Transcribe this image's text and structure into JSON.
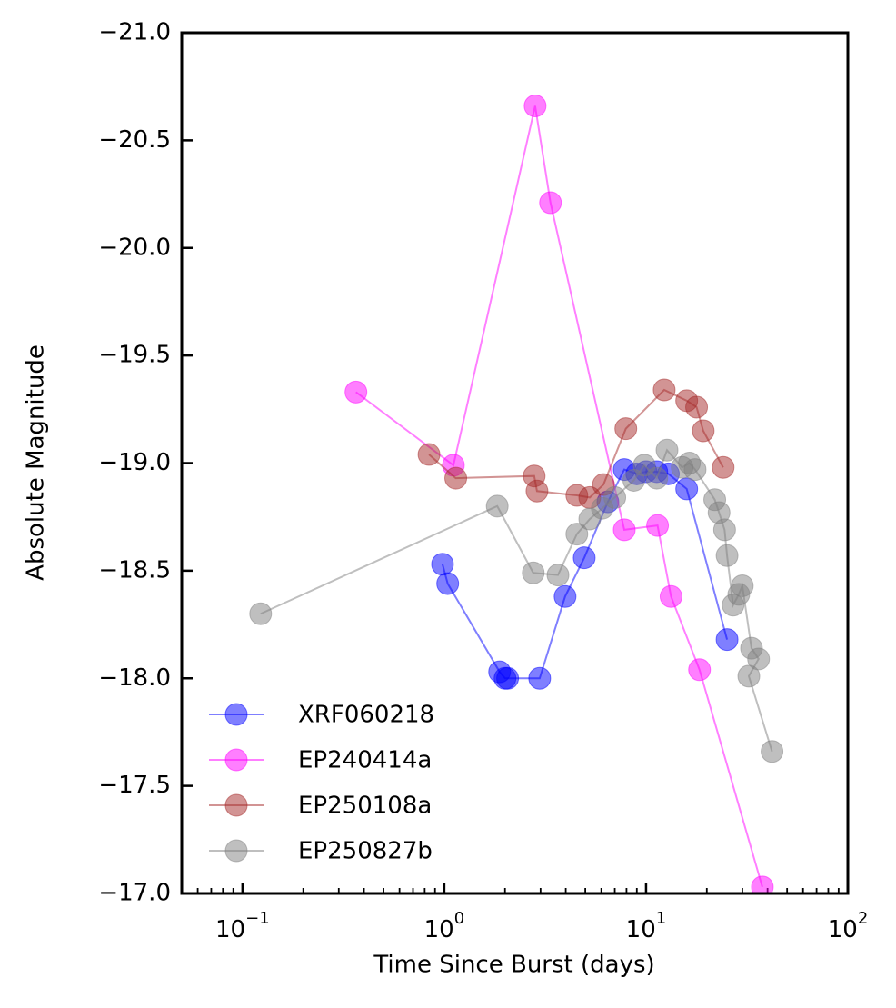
{
  "chart_data": {
    "type": "line",
    "xlabel": "Time Since Burst (days)",
    "ylabel": "Absolute Magnitude",
    "xscale": "log",
    "xlim": [
      0.05,
      100
    ],
    "ylim": [
      -17,
      -21
    ],
    "xticks": [
      {
        "value": 0.1,
        "label": "10",
        "exponent": "−1"
      },
      {
        "value": 1,
        "label": "10",
        "exponent": "0"
      },
      {
        "value": 10,
        "label": "10",
        "exponent": "1"
      },
      {
        "value": 100,
        "label": "10",
        "exponent": "2"
      }
    ],
    "yticks": [
      {
        "value": -21,
        "label": "−21.0"
      },
      {
        "value": -20.5,
        "label": "−20.5"
      },
      {
        "value": -20,
        "label": "−20.0"
      },
      {
        "value": -19.5,
        "label": "−19.5"
      },
      {
        "value": -19,
        "label": "−19.0"
      },
      {
        "value": -18.5,
        "label": "−18.5"
      },
      {
        "value": -18,
        "label": "−18.0"
      },
      {
        "value": -17.5,
        "label": "−17.5"
      },
      {
        "value": -17,
        "label": "−17.0"
      }
    ],
    "legend": "lower left",
    "series": [
      {
        "name": "XRF060218",
        "color": "#0000ff",
        "x": [
          0.98,
          1.04,
          1.88,
          2.0,
          2.06,
          2.97,
          3.97,
          4.94,
          6.47,
          7.8,
          9.0,
          10,
          11.3,
          12.9,
          15.9,
          25.2
        ],
        "values": [
          -18.53,
          -18.44,
          -18.03,
          -18.0,
          -18.0,
          -18.0,
          -18.38,
          -18.56,
          -18.82,
          -18.97,
          -18.95,
          -18.96,
          -18.96,
          -18.95,
          -18.88,
          -18.18
        ]
      },
      {
        "name": "EP240414a",
        "color": "#ff00ff",
        "x": [
          0.365,
          1.11,
          2.82,
          3.36,
          7.8,
          11.4,
          13.3,
          18.4,
          37.7
        ],
        "values": [
          -19.33,
          -18.99,
          -20.66,
          -20.21,
          -18.69,
          -18.71,
          -18.38,
          -18.04,
          -17.03
        ]
      },
      {
        "name": "EP250108a",
        "color": "#a52a2a",
        "x": [
          0.84,
          1.14,
          2.79,
          2.88,
          4.54,
          5.26,
          6.15,
          7.94,
          12.3,
          15.9,
          17.8,
          19.2,
          24.1
        ],
        "values": [
          -19.04,
          -18.93,
          -18.94,
          -18.87,
          -18.85,
          -18.84,
          -18.9,
          -19.16,
          -19.34,
          -19.29,
          -19.26,
          -19.15,
          -18.98
        ]
      },
      {
        "name": "EP250827b",
        "color": "#808080",
        "x": [
          0.123,
          1.83,
          2.76,
          3.66,
          4.54,
          5.26,
          6.07,
          7.0,
          8.7,
          9.8,
          11.3,
          12.7,
          15.1,
          16.4,
          17.5,
          21.9,
          23.0,
          24.5,
          25.2,
          27.0,
          28.8,
          30.0,
          33.3,
          36.1,
          32.3,
          42.1
        ],
        "values": [
          -18.3,
          -18.8,
          -18.49,
          -18.48,
          -18.67,
          -18.74,
          -18.79,
          -18.84,
          -18.92,
          -18.99,
          -18.93,
          -19.06,
          -18.98,
          -19.0,
          -18.97,
          -18.83,
          -18.77,
          -18.69,
          -18.57,
          -18.34,
          -18.39,
          -18.43,
          -18.14,
          -18.09,
          -18.01,
          -17.66
        ]
      }
    ]
  }
}
